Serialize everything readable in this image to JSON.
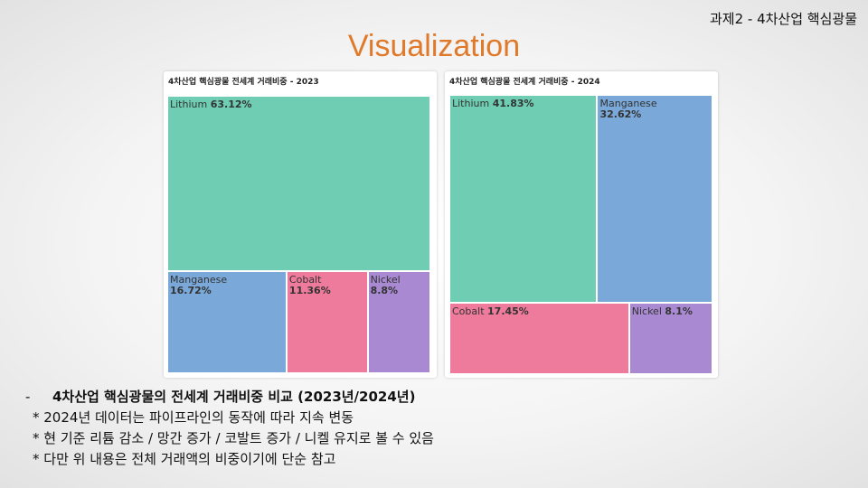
{
  "header": {
    "corner_text": "과제2 - 4차산업 핵심광물",
    "main_title": "Visualization"
  },
  "colors": {
    "Lithium": "#6ecdb2",
    "Manganese": "#7aa8d8",
    "Cobalt": "#ee7a9c",
    "Nickel": "#a98ad2"
  },
  "chart_data": [
    {
      "type": "treemap",
      "title": "4차산업 핵심광물 전세계 거래비중 - 2023",
      "categories": [
        "Lithium",
        "Manganese",
        "Cobalt",
        "Nickel"
      ],
      "values": [
        63.12,
        16.72,
        11.36,
        8.8
      ],
      "labels": [
        "63.12%",
        "16.72%",
        "11.36%",
        "8.8%"
      ]
    },
    {
      "type": "treemap",
      "title": "4차산업 핵심광물 전세계 거래비중 - 2024",
      "categories": [
        "Lithium",
        "Manganese",
        "Cobalt",
        "Nickel"
      ],
      "values": [
        41.83,
        32.62,
        17.45,
        8.1
      ],
      "labels": [
        "41.83%",
        "32.62%",
        "17.45%",
        "8.1%"
      ]
    }
  ],
  "notes": {
    "dash": "-",
    "heading": "4차산업 핵심광물의 전세계 거래비중 비교 (2023년/2024년)",
    "lines": [
      "* 2024년 데이터는 파이프라인의 동작에 따라 지속 변동",
      "* 현 기준 리튬 감소 / 망간 증가 / 코발트 증가 / 니켈 유지로 볼 수 있음",
      "* 다만 위 내용은 전체 거래액의 비중이기에 단순 참고"
    ]
  }
}
